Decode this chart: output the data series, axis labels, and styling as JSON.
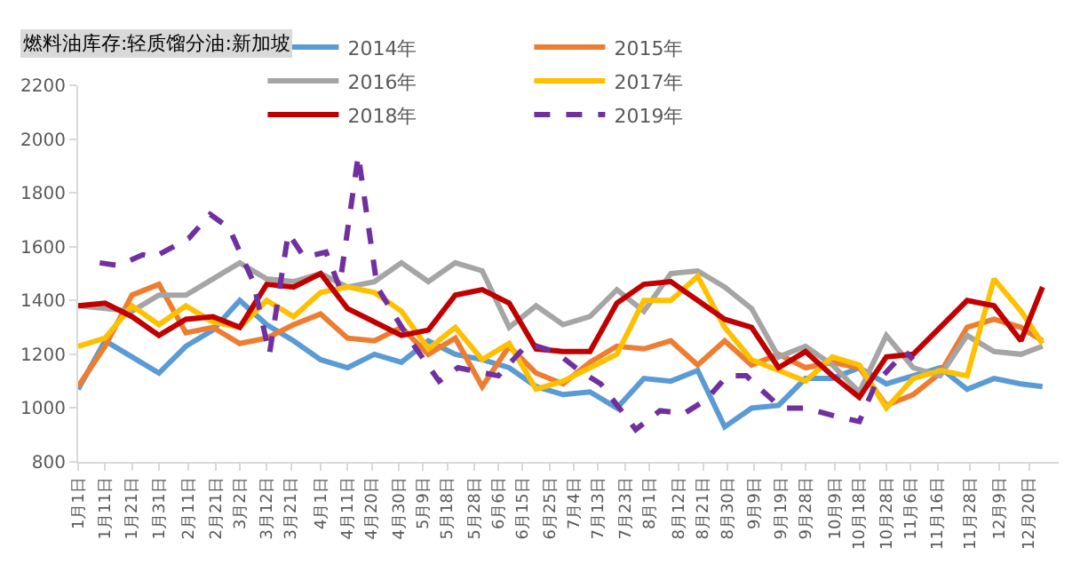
{
  "chart_data": {
    "type": "line",
    "title": "燃料油库存:轻质馏分油:新加坡",
    "x": [
      "--01-01",
      "--01-11",
      "--01-21",
      "--01-31",
      "--02-10",
      "--02-20",
      "--03-02",
      "--03-12",
      "--03-22",
      "--04-01",
      "--04-11",
      "--04-21",
      "--05-01",
      "--05-11",
      "--05-21",
      "--05-31",
      "--06-10",
      "--06-20",
      "--06-30",
      "--07-10",
      "--07-20",
      "--07-30",
      "--08-09",
      "--08-19",
      "--08-29",
      "--09-08",
      "--09-18",
      "--09-28",
      "--10-08",
      "--10-18",
      "--10-28",
      "--11-07",
      "--11-17",
      "--11-27",
      "--12-07",
      "--12-17",
      "--12-25"
    ],
    "xlim": [
      "--01-01",
      "--12-31"
    ],
    "xticks": [
      {
        "value": "--01-01",
        "label": "1月1日"
      },
      {
        "value": "--01-11",
        "label": "1月11日"
      },
      {
        "value": "--01-21",
        "label": "1月21日"
      },
      {
        "value": "--01-31",
        "label": "1月31日"
      },
      {
        "value": "--02-11",
        "label": "2月11日"
      },
      {
        "value": "--02-21",
        "label": "2月21日"
      },
      {
        "value": "--03-02",
        "label": "3月2日"
      },
      {
        "value": "--03-12",
        "label": "3月12日"
      },
      {
        "value": "--03-21",
        "label": "3月21日"
      },
      {
        "value": "--04-01",
        "label": "4月1日"
      },
      {
        "value": "--04-11",
        "label": "4月11日"
      },
      {
        "value": "--04-20",
        "label": "4月20日"
      },
      {
        "value": "--04-30",
        "label": "4月30日"
      },
      {
        "value": "--05-09",
        "label": "5月9日"
      },
      {
        "value": "--05-18",
        "label": "5月18日"
      },
      {
        "value": "--05-28",
        "label": "5月28日"
      },
      {
        "value": "--06-06",
        "label": "6月6日"
      },
      {
        "value": "--06-15",
        "label": "6月15日"
      },
      {
        "value": "--06-25",
        "label": "6月25日"
      },
      {
        "value": "--07-04",
        "label": "7月4日"
      },
      {
        "value": "--07-13",
        "label": "7月13日"
      },
      {
        "value": "--07-23",
        "label": "7月23日"
      },
      {
        "value": "--08-01",
        "label": "8月1日"
      },
      {
        "value": "--08-12",
        "label": "8月12日"
      },
      {
        "value": "--08-21",
        "label": "8月21日"
      },
      {
        "value": "--08-30",
        "label": "8月30日"
      },
      {
        "value": "--09-09",
        "label": "9月9日"
      },
      {
        "value": "--09-19",
        "label": "9月19日"
      },
      {
        "value": "--09-28",
        "label": "9月28日"
      },
      {
        "value": "--10-09",
        "label": "10月9日"
      },
      {
        "value": "--10-18",
        "label": "10月18日"
      },
      {
        "value": "--10-28",
        "label": "10月28日"
      },
      {
        "value": "--11-06",
        "label": "11月6日"
      },
      {
        "value": "--11-16",
        "label": "11月16日"
      },
      {
        "value": "--11-28",
        "label": "11月28日"
      },
      {
        "value": "--12-09",
        "label": "12月9日"
      },
      {
        "value": "--12-20",
        "label": "12月20日"
      }
    ],
    "ylim": [
      800,
      2200
    ],
    "yticks": [
      800,
      1000,
      1200,
      1400,
      1600,
      1800,
      2000,
      2200
    ],
    "grid": false,
    "legend": "top",
    "marker": "none",
    "series": [
      {
        "name": "2014年",
        "color": "#5b9bd5",
        "line_style": "solid",
        "values": [
          1070,
          1250,
          1190,
          1130,
          1230,
          1290,
          1400,
          1310,
          1250,
          1180,
          1150,
          1200,
          1170,
          1250,
          1200,
          1180,
          1150,
          1080,
          1050,
          1060,
          1000,
          1110,
          1100,
          1140,
          930,
          1000,
          1010,
          1110,
          1110,
          1150,
          1090,
          1120,
          1150,
          1070,
          1110,
          1090,
          1080
        ]
      },
      {
        "name": "2015年",
        "color": "#ed7d31",
        "line_style": "solid",
        "values": [
          1080,
          1230,
          1420,
          1460,
          1280,
          1300,
          1240,
          1260,
          1310,
          1350,
          1260,
          1250,
          1300,
          1200,
          1260,
          1080,
          1230,
          1130,
          1090,
          1170,
          1230,
          1220,
          1250,
          1160,
          1250,
          1160,
          1200,
          1150,
          1170,
          1150,
          1010,
          1050,
          1130,
          1300,
          1330,
          1300,
          1250
        ]
      },
      {
        "name": "2016年",
        "color": "#a5a5a5",
        "line_style": "solid",
        "values": [
          1380,
          1370,
          1360,
          1420,
          1420,
          1480,
          1540,
          1480,
          1470,
          1500,
          1450,
          1470,
          1540,
          1470,
          1540,
          1510,
          1300,
          1380,
          1310,
          1340,
          1440,
          1360,
          1500,
          1510,
          1450,
          1370,
          1190,
          1230,
          1160,
          1060,
          1270,
          1150,
          1120,
          1270,
          1210,
          1200,
          1230
        ]
      },
      {
        "name": "2017年",
        "color": "#ffc000",
        "line_style": "solid",
        "values": [
          1230,
          1260,
          1380,
          1310,
          1380,
          1320,
          1300,
          1400,
          1340,
          1430,
          1450,
          1430,
          1360,
          1220,
          1300,
          1180,
          1240,
          1070,
          1100,
          1150,
          1200,
          1400,
          1400,
          1490,
          1300,
          1180,
          1140,
          1100,
          1190,
          1160,
          1000,
          1110,
          1140,
          1120,
          1480,
          1360,
          1240
        ]
      },
      {
        "name": "2018年",
        "color": "#c00000",
        "line_style": "solid",
        "values": [
          1380,
          1390,
          1340,
          1270,
          1330,
          1340,
          1300,
          1460,
          1450,
          1500,
          1370,
          1320,
          1270,
          1290,
          1420,
          1440,
          1390,
          1220,
          1210,
          1210,
          1390,
          1460,
          1470,
          1400,
          1330,
          1300,
          1150,
          1210,
          1120,
          1040,
          1190,
          1200,
          1300,
          1400,
          1380,
          1250,
          1450
        ]
      },
      {
        "name": "2019年",
        "color": "#7030a0",
        "line_style": "dashed",
        "x": [
          "--01-09",
          "--01-16",
          "--01-25",
          "--01-29",
          "--02-11",
          "--02-19",
          "--02-26",
          "--03-07",
          "--03-13",
          "--03-20",
          "--03-26",
          "--04-03",
          "--04-08",
          "--04-15",
          "--04-22",
          "--05-03",
          "--05-15",
          "--05-22",
          "--06-06",
          "--06-17",
          "--06-27",
          "--07-06",
          "--07-14",
          "--07-27",
          "--08-05",
          "--08-14",
          "--08-22",
          "--08-30",
          "--09-06",
          "--09-19",
          "--09-28",
          "--10-09",
          "--10-18",
          "--10-24",
          "--11-04",
          "--11-07"
        ],
        "values": [
          1540,
          1530,
          1570,
          1560,
          1630,
          1720,
          1670,
          1470,
          1200,
          1650,
          1560,
          1580,
          1450,
          1940,
          1450,
          1270,
          1100,
          1150,
          1120,
          1240,
          1210,
          1140,
          1090,
          920,
          990,
          980,
          1030,
          1120,
          1120,
          1000,
          1000,
          970,
          950,
          1090,
          1210,
          1180
        ]
      }
    ]
  }
}
